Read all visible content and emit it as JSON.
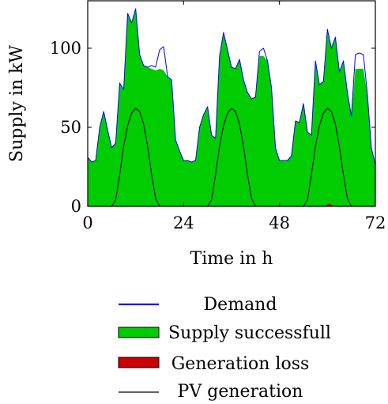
{
  "colors": {
    "demand": "#0000ff",
    "supply": "#00cc00",
    "loss": "#cc0000",
    "pv": "#000000"
  },
  "chart_data": {
    "type": "area",
    "title": "",
    "xlabel": "Time in h",
    "ylabel": "Supply in kW",
    "xlim": [
      0,
      72
    ],
    "ylim": [
      0,
      130
    ],
    "grid": false,
    "legend_position": "below",
    "x_ticks": [
      0,
      24,
      48,
      72
    ],
    "y_ticks": [
      0,
      50,
      100
    ],
    "x": [
      0,
      1,
      2,
      3,
      4,
      5,
      6,
      7,
      8,
      9,
      10,
      11,
      12,
      13,
      14,
      15,
      16,
      17,
      18,
      19,
      20,
      21,
      22,
      23,
      24,
      25,
      26,
      27,
      28,
      29,
      30,
      31,
      32,
      33,
      34,
      35,
      36,
      37,
      38,
      39,
      40,
      41,
      42,
      43,
      44,
      45,
      46,
      47,
      48,
      49,
      50,
      51,
      52,
      53,
      54,
      55,
      56,
      57,
      58,
      59,
      60,
      61,
      62,
      63,
      64,
      65,
      66,
      67,
      68,
      69,
      70,
      71,
      72
    ],
    "series": [
      {
        "name": "Demand",
        "style": "line",
        "values": [
          31,
          28,
          29,
          50,
          60,
          48,
          37,
          40,
          78,
          74,
          122,
          116,
          125,
          96,
          89,
          88,
          89,
          88,
          99,
          101,
          82,
          80,
          42,
          35,
          29,
          29,
          28,
          29,
          50,
          58,
          63,
          45,
          43,
          95,
          110,
          99,
          88,
          87,
          93,
          80,
          72,
          68,
          69,
          98,
          100,
          92,
          75,
          37,
          29,
          29,
          29,
          32,
          54,
          53,
          65,
          47,
          45,
          92,
          77,
          79,
          112,
          100,
          107,
          85,
          92,
          72,
          57,
          96,
          97,
          96,
          71,
          37,
          26
        ]
      },
      {
        "name": "Supply successfull",
        "style": "area",
        "values": [
          31,
          28,
          29,
          50,
          60,
          48,
          37,
          40,
          78,
          74,
          122,
          116,
          125,
          96,
          89,
          88,
          87,
          86,
          87,
          86,
          82,
          80,
          42,
          35,
          29,
          29,
          28,
          29,
          50,
          58,
          63,
          45,
          43,
          95,
          110,
          99,
          88,
          87,
          93,
          80,
          72,
          68,
          69,
          95,
          95,
          92,
          75,
          37,
          29,
          29,
          29,
          32,
          54,
          53,
          65,
          47,
          45,
          92,
          77,
          79,
          112,
          100,
          107,
          85,
          92,
          72,
          57,
          87,
          87,
          87,
          71,
          37,
          26
        ]
      },
      {
        "name": "Generation loss",
        "style": "area",
        "x": [
          59.5,
          60.5,
          61.5
        ],
        "values": [
          0,
          1.5,
          0
        ]
      },
      {
        "name": "PV generation",
        "style": "line",
        "x": [
          0,
          6,
          7,
          8,
          9,
          10,
          11,
          12,
          13,
          14,
          15,
          16,
          17,
          18,
          30,
          31,
          32,
          33,
          34,
          35,
          36,
          37,
          38,
          39,
          40,
          41,
          42,
          54,
          55,
          56,
          57,
          58,
          59,
          60,
          61,
          62,
          63,
          64,
          65,
          66,
          72
        ],
        "values": [
          0,
          0,
          4,
          20,
          38,
          51,
          59,
          62,
          60,
          52,
          38,
          20,
          5,
          0,
          0,
          4,
          20,
          38,
          51,
          59,
          62,
          60,
          52,
          38,
          20,
          5,
          0,
          0,
          4,
          20,
          38,
          51,
          59,
          62,
          60,
          52,
          38,
          20,
          5,
          0,
          0
        ]
      }
    ]
  }
}
